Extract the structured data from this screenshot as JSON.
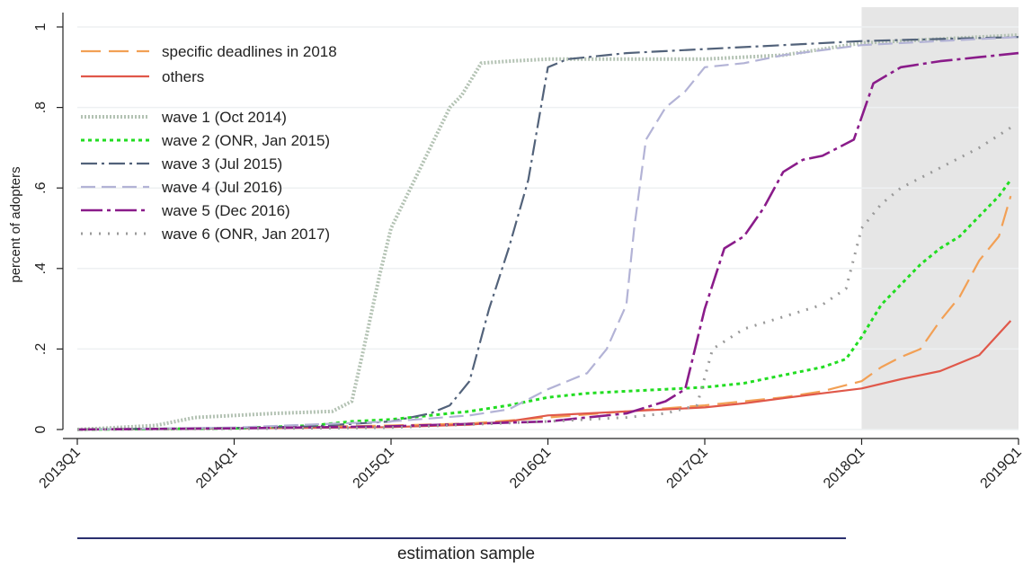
{
  "chart_data": {
    "type": "line",
    "title": "",
    "xlabel": "",
    "ylabel": "percent of adopters",
    "xlim": [
      0,
      24
    ],
    "ylim": [
      0,
      1
    ],
    "grid": true,
    "legend_position": "top-left",
    "shaded_region": {
      "from": 20,
      "to": 24,
      "color": "#e6e6e6"
    },
    "x_ticks": [
      {
        "value": 0,
        "label": "2013Q1"
      },
      {
        "value": 4,
        "label": "2014Q1"
      },
      {
        "value": 8,
        "label": "2015Q1"
      },
      {
        "value": 12,
        "label": "2016Q1"
      },
      {
        "value": 16,
        "label": "2017Q1"
      },
      {
        "value": 20,
        "label": "2018Q1"
      },
      {
        "value": 24,
        "label": "2019Q1"
      }
    ],
    "y_ticks": [
      {
        "value": 0,
        "label": "0"
      },
      {
        "value": 0.2,
        "label": ".2"
      },
      {
        "value": 0.4,
        "label": ".4"
      },
      {
        "value": 0.6,
        "label": ".6"
      },
      {
        "value": 0.8,
        "label": ".8"
      },
      {
        "value": 1,
        "label": "1"
      }
    ],
    "annotation": {
      "label": "estimation sample",
      "x_from": 0,
      "x_to": 19.6
    },
    "series": [
      {
        "name": "specific deadlines in 2018",
        "color": "#f2a055",
        "dash": "22,9",
        "width": 2.2,
        "x": [
          0,
          4,
          8,
          10,
          12,
          14,
          16,
          17,
          18,
          19,
          20,
          20.5,
          21,
          21.5,
          22,
          22.5,
          23,
          23.5,
          23.8
        ],
        "y": [
          0,
          0.003,
          0.01,
          0.015,
          0.03,
          0.045,
          0.06,
          0.07,
          0.08,
          0.095,
          0.12,
          0.155,
          0.18,
          0.2,
          0.27,
          0.33,
          0.42,
          0.48,
          0.58
        ]
      },
      {
        "name": "others",
        "color": "#e0584a",
        "dash": "",
        "width": 2.2,
        "x": [
          0,
          4,
          8,
          10,
          11,
          12,
          14,
          16,
          17,
          18,
          19,
          20,
          21,
          22,
          23,
          23.8
        ],
        "y": [
          0,
          0.003,
          0.006,
          0.012,
          0.02,
          0.035,
          0.045,
          0.055,
          0.065,
          0.078,
          0.09,
          0.102,
          0.125,
          0.145,
          0.185,
          0.27
        ]
      },
      {
        "name": "wave 1 (Oct 2014)",
        "color": "#b3c2b3",
        "dash": "2,2",
        "width": 4,
        "x": [
          0,
          1,
          2,
          3,
          5,
          6.5,
          7,
          7.3,
          7.7,
          8,
          8.5,
          9,
          9.5,
          9.8,
          10.3,
          11,
          12,
          14,
          16,
          18,
          20,
          22,
          24
        ],
        "y": [
          0,
          0.005,
          0.01,
          0.03,
          0.04,
          0.045,
          0.07,
          0.2,
          0.38,
          0.5,
          0.6,
          0.7,
          0.8,
          0.83,
          0.91,
          0.915,
          0.92,
          0.92,
          0.92,
          0.93,
          0.96,
          0.97,
          0.98
        ]
      },
      {
        "name": "wave 2 (ONR, Jan 2015)",
        "color": "#22dd22",
        "dash": "4,4",
        "width": 3,
        "x": [
          0,
          4,
          6,
          7,
          8,
          9,
          10,
          11,
          12,
          13,
          14,
          15,
          16,
          17,
          18,
          19,
          19.6,
          20,
          20.5,
          21,
          21.5,
          22,
          22.5,
          23,
          23.5,
          23.8
        ],
        "y": [
          0,
          0.003,
          0.01,
          0.02,
          0.025,
          0.035,
          0.045,
          0.06,
          0.08,
          0.09,
          0.095,
          0.1,
          0.105,
          0.115,
          0.135,
          0.155,
          0.175,
          0.23,
          0.31,
          0.36,
          0.41,
          0.45,
          0.48,
          0.53,
          0.58,
          0.62
        ]
      },
      {
        "name": "wave 3 (Jul 2015)",
        "color": "#52627a",
        "dash": "18,5,3,5",
        "width": 2.2,
        "x": [
          0,
          4,
          6,
          8,
          9,
          9.5,
          10,
          10.5,
          11,
          11.5,
          12,
          12.5,
          13,
          14,
          16,
          18,
          20,
          22,
          24
        ],
        "y": [
          0,
          0.004,
          0.008,
          0.02,
          0.04,
          0.06,
          0.12,
          0.3,
          0.45,
          0.62,
          0.9,
          0.92,
          0.925,
          0.935,
          0.945,
          0.955,
          0.965,
          0.97,
          0.975
        ]
      },
      {
        "name": "wave 4 (Jul 2016)",
        "color": "#b3b3d6",
        "dash": "16,7",
        "width": 2.2,
        "x": [
          0,
          4,
          8,
          10,
          11,
          12,
          13,
          13.5,
          14,
          14.2,
          14.5,
          15,
          15.5,
          16,
          17,
          18,
          20,
          22,
          24
        ],
        "y": [
          0,
          0.005,
          0.02,
          0.035,
          0.05,
          0.1,
          0.14,
          0.2,
          0.31,
          0.5,
          0.72,
          0.8,
          0.84,
          0.9,
          0.91,
          0.93,
          0.955,
          0.965,
          0.975
        ]
      },
      {
        "name": "wave 5 (Dec 2016)",
        "color": "#8a1c8a",
        "dash": "24,5,4,5",
        "width": 2.6,
        "x": [
          0,
          4,
          8,
          12,
          14,
          15,
          15.5,
          16,
          16.5,
          17,
          17.5,
          18,
          18.5,
          19,
          19.8,
          20.3,
          21,
          22,
          23,
          24
        ],
        "y": [
          0,
          0.003,
          0.008,
          0.02,
          0.04,
          0.07,
          0.1,
          0.3,
          0.45,
          0.48,
          0.55,
          0.64,
          0.67,
          0.68,
          0.72,
          0.86,
          0.9,
          0.915,
          0.925,
          0.935
        ]
      },
      {
        "name": "wave 6 (ONR, Jan 2017)",
        "color": "#9a9a9a",
        "dash": "2,8",
        "width": 3,
        "x": [
          0,
          4,
          8,
          12,
          14,
          15,
          15.8,
          16.2,
          17,
          18,
          19,
          19.6,
          20,
          20.5,
          21,
          22,
          23,
          23.8
        ],
        "y": [
          0,
          0.002,
          0.005,
          0.02,
          0.03,
          0.04,
          0.06,
          0.2,
          0.25,
          0.28,
          0.31,
          0.35,
          0.5,
          0.56,
          0.6,
          0.65,
          0.7,
          0.75
        ]
      }
    ]
  }
}
